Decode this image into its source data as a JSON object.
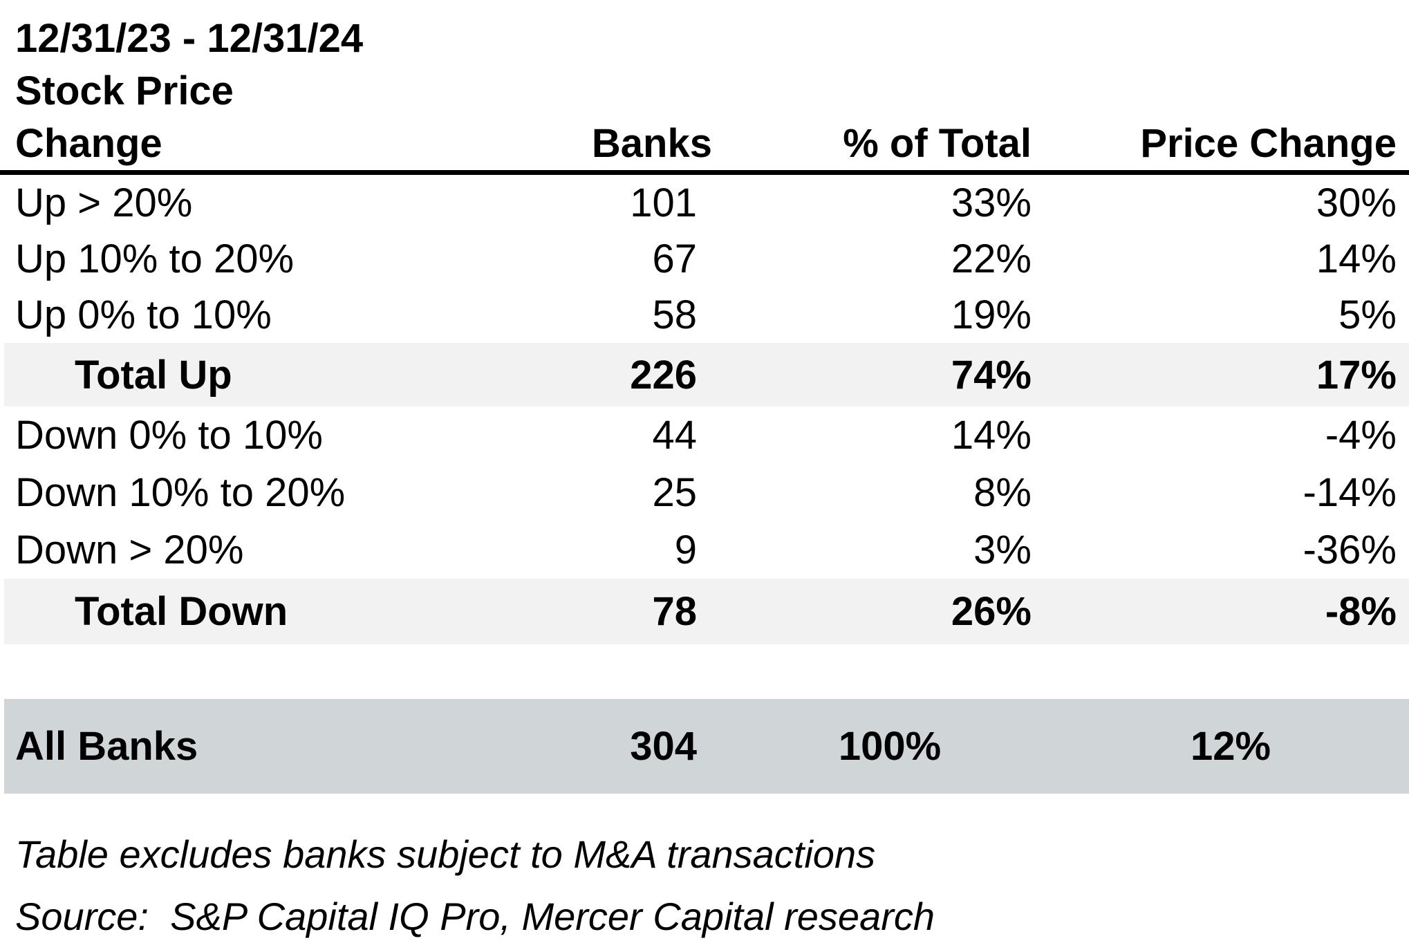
{
  "header": {
    "date_range": "12/31/23 - 12/31/24",
    "metric_line": "Stock Price"
  },
  "table": {
    "headers": {
      "change": "Change",
      "banks": "Banks",
      "pct_of_total": "% of Total",
      "price_change": "Price Change"
    },
    "rows": [
      {
        "label": "Up > 20%",
        "banks": "101",
        "pct_of_total": "33%",
        "price_change": "30%",
        "style": "normal"
      },
      {
        "label": "Up 10% to 20%",
        "banks": "67",
        "pct_of_total": "22%",
        "price_change": "14%",
        "style": "normal"
      },
      {
        "label": "Up 0% to 10%",
        "banks": "58",
        "pct_of_total": "19%",
        "price_change": "5%",
        "style": "normal"
      },
      {
        "label": "Total Up",
        "banks": "226",
        "pct_of_total": "74%",
        "price_change": "17%",
        "style": "total"
      },
      {
        "label": "Down 0% to 10%",
        "banks": "44",
        "pct_of_total": "14%",
        "price_change": "-4%",
        "style": "normal"
      },
      {
        "label": "Down 10% to 20%",
        "banks": "25",
        "pct_of_total": "8%",
        "price_change": "-14%",
        "style": "normal"
      },
      {
        "label": "Down > 20%",
        "banks": "9",
        "pct_of_total": "3%",
        "price_change": "-36%",
        "style": "normal"
      },
      {
        "label": "Total Down",
        "banks": "78",
        "pct_of_total": "26%",
        "price_change": "-8%",
        "style": "total"
      }
    ],
    "summary_row": {
      "label": "All Banks",
      "banks": "304",
      "pct_of_total": "100%",
      "price_change": "12%"
    }
  },
  "footnotes": {
    "note": "Table excludes banks subject to M&A transactions",
    "source": "Source:  S&P Capital IQ Pro, Mercer Capital research"
  },
  "colors": {
    "total_row_bg": "#f2f2f2",
    "all_banks_row_bg": "#d0d6d7",
    "rule": "#000000",
    "text": "#000000"
  },
  "chart_data": {
    "type": "table",
    "title": "12/31/23 - 12/31/24 Stock Price Change",
    "columns": [
      "Stock Price Change",
      "Banks",
      "% of Total",
      "Price Change"
    ],
    "rows": [
      [
        "Up > 20%",
        101,
        "33%",
        "30%"
      ],
      [
        "Up 10% to 20%",
        67,
        "22%",
        "14%"
      ],
      [
        "Up 0% to 10%",
        58,
        "19%",
        "5%"
      ],
      [
        "Total Up",
        226,
        "74%",
        "17%"
      ],
      [
        "Down 0% to 10%",
        44,
        "14%",
        "-4%"
      ],
      [
        "Down 10% to 20%",
        25,
        "8%",
        "-14%"
      ],
      [
        "Down > 20%",
        9,
        "3%",
        "-36%"
      ],
      [
        "Total Down",
        78,
        "26%",
        "-8%"
      ],
      [
        "All Banks",
        304,
        "100%",
        "12%"
      ]
    ],
    "annotations": [
      "Table excludes banks subject to M&A transactions",
      "Source:  S&P Capital IQ Pro, Mercer Capital research"
    ]
  }
}
